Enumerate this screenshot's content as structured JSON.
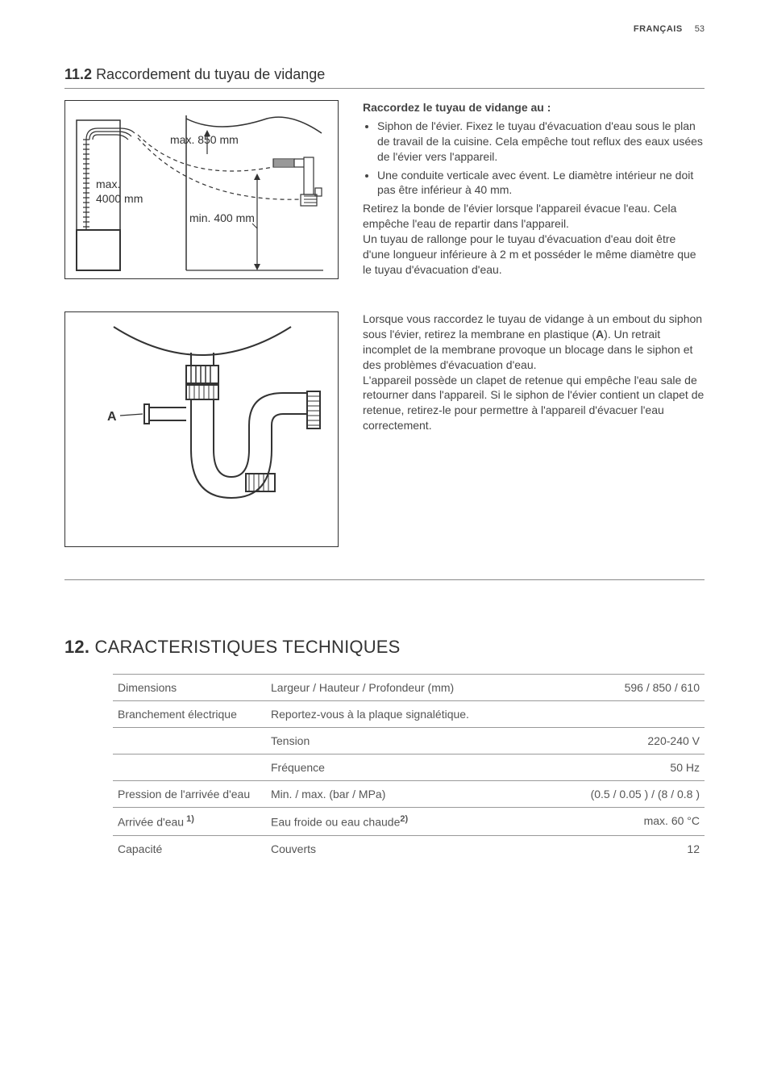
{
  "header": {
    "language": "FRANÇAIS",
    "page": "53"
  },
  "subsection": {
    "number": "11.2",
    "title": "Raccordement du tuyau de vidange"
  },
  "diagram1": {
    "label_max_top": "max. 850 mm",
    "label_max_left_1": "max.",
    "label_max_left_2": "4000 mm",
    "label_min": "min. 400 mm"
  },
  "text1": {
    "lead": "Raccordez le tuyau de vidange au :",
    "bullets": [
      "Siphon de l'évier. Fixez le tuyau d'évacuation d'eau sous le plan de travail de la cuisine. Cela empêche tout reflux des eaux usées de l'évier vers l'appareil.",
      "Une conduite verticale avec évent. Le diamètre intérieur ne doit pas être inférieur à 40 mm."
    ],
    "para1": "Retirez la bonde de l'évier lorsque l'appareil évacue l'eau. Cela empêche l'eau de repartir dans l'appareil.",
    "para2": "Un tuyau de rallonge pour le tuyau d'évacuation d'eau doit être d'une longueur inférieure à 2 m et posséder le même diamètre que le tuyau d'évacuation d'eau."
  },
  "diagram2": {
    "label_a": "A"
  },
  "text2": {
    "para1a": "Lorsque vous raccordez le tuyau de vidange à un embout du siphon sous l'évier, retirez la membrane en plastique (",
    "para1b": "A",
    "para1c": "). Un retrait incomplet de la membrane provoque un blocage dans le siphon et des problèmes d'évacuation d'eau.",
    "para2": "L'appareil possède un clapet de retenue qui empêche l'eau sale de retourner dans l'appareil. Si le siphon de l'évier contient un clapet de retenue, retirez-le pour permettre à l'appareil d'évacuer l'eau correctement."
  },
  "section": {
    "number": "12.",
    "title": "CARACTERISTIQUES TECHNIQUES"
  },
  "table": {
    "rows": [
      {
        "c1": "Dimensions",
        "c2": "Largeur / Hauteur / Profondeur (mm)",
        "c3": "596 / 850 / 610"
      },
      {
        "c1": "Branchement électrique",
        "c2": "Reportez-vous à la plaque signalétique.",
        "c3": ""
      },
      {
        "c1": "",
        "c2": "Tension",
        "c3": "220-240 V"
      },
      {
        "c1": "",
        "c2": "Fréquence",
        "c3": "50 Hz"
      },
      {
        "c1": "Pression de l'arrivée d'eau",
        "c2": "Min. / max. (bar / MPa)",
        "c3": "(0.5 / 0.05 ) / (8 / 0.8 )"
      },
      {
        "c1": "Arrivée d'eau",
        "c1_sup": "1)",
        "c2": "Eau froide ou eau chaude",
        "c2_sup": "2)",
        "c3": "max. 60 °C"
      },
      {
        "c1": "Capacité",
        "c2": "Couverts",
        "c3": "12"
      }
    ]
  }
}
